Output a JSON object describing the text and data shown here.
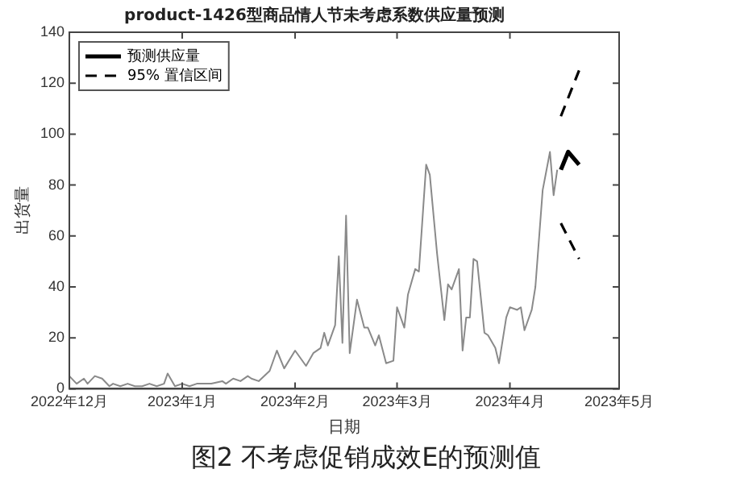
{
  "chart_data": {
    "type": "line",
    "title": "product-1426型商品情人节未考虑系数供应量预测",
    "xlabel": "日期",
    "ylabel": "出货量",
    "annotations": [
      "图2  不考虑促销成效E的预测值"
    ],
    "xlim": [
      "2022-12-01",
      "2023-05-01"
    ],
    "xticks": [
      {
        "value": "2022-12-01",
        "label": "2022年12月"
      },
      {
        "value": "2023-01-01",
        "label": "2023年1月"
      },
      {
        "value": "2023-02-01",
        "label": "2023年2月"
      },
      {
        "value": "2023-03-01",
        "label": "2023年3月"
      },
      {
        "value": "2023-04-01",
        "label": "2023年4月"
      },
      {
        "value": "2023-05-01",
        "label": "2023年5月"
      }
    ],
    "ylim": [
      0,
      140
    ],
    "yticks": [
      0,
      20,
      40,
      60,
      80,
      100,
      120,
      140
    ],
    "grid": false,
    "legend": "top left",
    "marker": "none",
    "series": [
      {
        "color": "#8a8a8a",
        "line_style": "solid",
        "x": [
          "2022-12-01",
          "2022-12-03",
          "2022-12-05",
          "2022-12-06",
          "2022-12-08",
          "2022-12-10",
          "2022-12-12",
          "2022-12-13",
          "2022-12-15",
          "2022-12-17",
          "2022-12-19",
          "2022-12-21",
          "2022-12-23",
          "2022-12-25",
          "2022-12-27",
          "2022-12-28",
          "2022-12-30",
          "2023-01-01",
          "2023-01-03",
          "2023-01-05",
          "2023-01-07",
          "2023-01-09",
          "2023-01-12",
          "2023-01-13",
          "2023-01-15",
          "2023-01-17",
          "2023-01-19",
          "2023-01-20",
          "2023-01-22",
          "2023-01-25",
          "2023-01-27",
          "2023-01-29",
          "2023-02-01",
          "2023-02-04",
          "2023-02-06",
          "2023-02-08",
          "2023-02-09",
          "2023-02-10",
          "2023-02-12",
          "2023-02-13",
          "2023-02-14",
          "2023-02-15",
          "2023-02-16",
          "2023-02-18",
          "2023-02-20",
          "2023-02-21",
          "2023-02-23",
          "2023-02-24",
          "2023-02-26",
          "2023-02-28",
          "2023-03-01",
          "2023-03-03",
          "2023-03-04",
          "2023-03-06",
          "2023-03-07",
          "2023-03-09",
          "2023-03-10",
          "2023-03-12",
          "2023-03-14",
          "2023-03-15",
          "2023-03-16",
          "2023-03-18",
          "2023-03-19",
          "2023-03-20",
          "2023-03-21",
          "2023-03-22",
          "2023-03-23",
          "2023-03-25",
          "2023-03-26",
          "2023-03-28",
          "2023-03-29",
          "2023-03-31",
          "2023-04-01",
          "2023-04-03",
          "2023-04-04",
          "2023-04-05",
          "2023-04-07",
          "2023-04-08",
          "2023-04-10",
          "2023-04-12",
          "2023-04-13",
          "2023-04-14"
        ],
        "values": [
          5,
          2,
          4,
          2,
          5,
          4,
          1,
          2,
          1,
          2,
          1,
          1,
          2,
          1,
          2,
          6,
          1,
          2,
          1,
          2,
          2,
          2,
          3,
          2,
          4,
          3,
          5,
          4,
          3,
          7,
          15,
          8,
          15,
          9,
          14,
          16,
          22,
          17,
          25,
          52,
          18,
          68,
          14,
          35,
          24,
          24,
          17,
          21,
          10,
          11,
          32,
          24,
          37,
          47,
          46,
          88,
          84,
          53,
          27,
          41,
          39,
          47,
          15,
          28,
          28,
          51,
          50,
          22,
          21,
          16,
          10,
          28,
          32,
          31,
          32,
          23,
          31,
          40,
          78,
          93,
          76,
          86
        ]
      },
      {
        "name": "预测供应量",
        "color": "#000000",
        "line_style": "solid",
        "x": [
          "2023-04-15",
          "2023-04-17",
          "2023-04-20"
        ],
        "values": [
          86,
          93,
          88
        ]
      },
      {
        "name": "95% 置信区间",
        "color": "#000000",
        "line_style": "dashed",
        "x": [
          "2023-04-15",
          "2023-04-20"
        ],
        "values": [
          107,
          125
        ]
      },
      {
        "color": "#000000",
        "line_style": "dashed",
        "x": [
          "2023-04-15",
          "2023-04-20"
        ],
        "values": [
          65,
          51
        ]
      }
    ]
  }
}
